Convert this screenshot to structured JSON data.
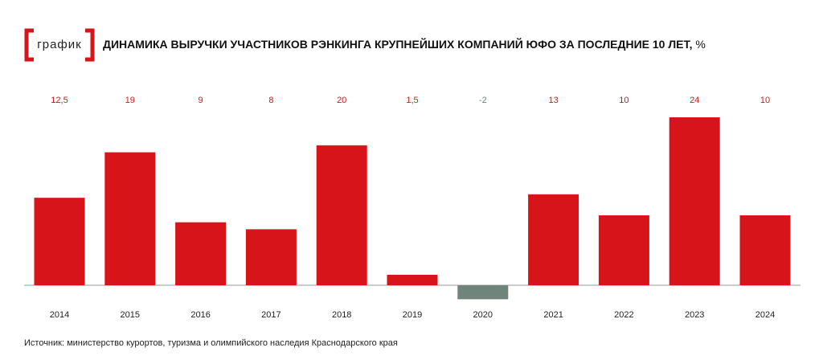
{
  "logo": "график",
  "chart_data": {
    "type": "bar",
    "title": "ДИНАМИКА ВЫРУЧКИ УЧАСТНИКОВ РЭНКИНГА КРУПНЕЙШИХ КОМПАНИЙ ЮФО ЗА ПОСЛЕДНИЕ 10 ЛЕТ,",
    "unit": "%",
    "categories": [
      "2014",
      "2015",
      "2016",
      "2017",
      "2018",
      "2019",
      "2020",
      "2021",
      "2022",
      "2023",
      "2024"
    ],
    "values": [
      12.5,
      19,
      9,
      8,
      20,
      1.5,
      -2,
      13,
      10,
      24,
      10
    ],
    "value_labels": [
      "12,5",
      "19",
      "9",
      "8",
      "20",
      "1,5",
      "-2",
      "13",
      "10",
      "24",
      "10"
    ],
    "colors": [
      "#d7141a",
      "#d7141a",
      "#d7141a",
      "#d7141a",
      "#d7141a",
      "#d7141a",
      "#6f857c",
      "#d7141a",
      "#d7141a",
      "#d7141a",
      "#d7141a"
    ],
    "source": "Источник: министерство курортов, туризма и олимпийского наследия Краснодарского края"
  }
}
